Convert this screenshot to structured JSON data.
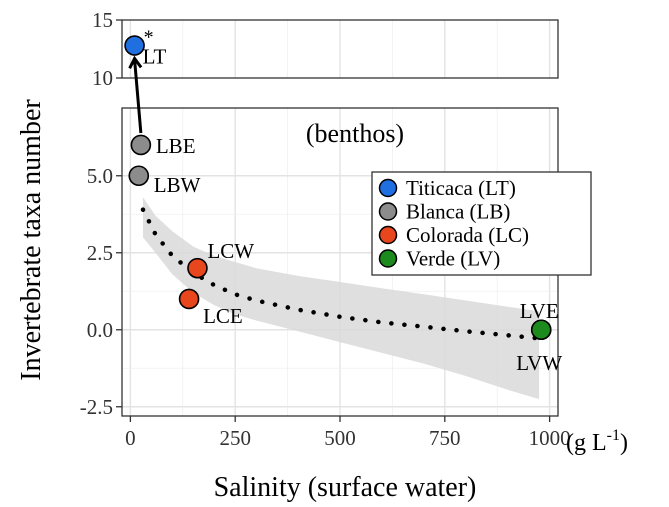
{
  "chart_data": {
    "type": "scatter",
    "xlabel": "Salinity (surface water)",
    "xunit": "(g L",
    "xunit_sup": "-1",
    "xunit_close": ")",
    "ylabel": "Invertebrate taxa number",
    "annotation": "(benthos)",
    "asterisk": "*",
    "x_ticks": [
      "0",
      "250",
      "500",
      "750",
      "1000"
    ],
    "x_tick_values": [
      0,
      250,
      500,
      750,
      1000
    ],
    "y_ticks_main": [
      "-2.5",
      "0.0",
      "2.5",
      "5.0"
    ],
    "y_tick_values_main": [
      -2.5,
      0,
      2.5,
      5.0
    ],
    "y_ticks_top": [
      "10",
      "15"
    ],
    "y_tick_values_top": [
      10,
      15
    ],
    "xlim": [
      -20,
      1020
    ],
    "ylim_main": [
      -2.8,
      7.2
    ],
    "ylim_top": [
      10,
      15
    ],
    "grid": true,
    "legend_position": "right-center",
    "legend": [
      {
        "label": "Titicaca (LT)",
        "color": "#1f6fe0"
      },
      {
        "label": "Blanca (LB)",
        "color": "#8c8c8c"
      },
      {
        "label": "Colorada (LC)",
        "color": "#e8461c"
      },
      {
        "label": "Verde (LV)",
        "color": "#1d8a1d"
      }
    ],
    "points": [
      {
        "label": "LT",
        "x": 10,
        "y": 12.8,
        "color": "#1f6fe0",
        "panel": "top"
      },
      {
        "label": "LBE",
        "x": 25,
        "y": 6,
        "color": "#8c8c8c",
        "panel": "main"
      },
      {
        "label": "LBW",
        "x": 20,
        "y": 5,
        "color": "#8c8c8c",
        "panel": "main"
      },
      {
        "label": "LCW",
        "x": 160,
        "y": 2,
        "color": "#e8461c",
        "panel": "main"
      },
      {
        "label": "LCE",
        "x": 140,
        "y": 1,
        "color": "#e8461c",
        "panel": "main"
      },
      {
        "label": "LVE",
        "x": 980,
        "y": 0,
        "color": "#1d8a1d",
        "panel": "main"
      },
      {
        "label": "LVW",
        "x": 980,
        "y": 0,
        "color": "#1d8a1d",
        "panel": "main"
      }
    ],
    "fit_curve": {
      "x": [
        30,
        60,
        100,
        150,
        200,
        250,
        300,
        400,
        500,
        600,
        700,
        800,
        900,
        975
      ],
      "y": [
        3.9,
        3.1,
        2.4,
        1.85,
        1.45,
        1.15,
        0.95,
        0.65,
        0.42,
        0.24,
        0.1,
        -0.05,
        -0.18,
        -0.28
      ]
    },
    "confidence_band": {
      "x": [
        30,
        60,
        100,
        150,
        200,
        250,
        300,
        400,
        500,
        600,
        700,
        800,
        900,
        975
      ],
      "upper": [
        4.3,
        3.7,
        3.2,
        2.7,
        2.4,
        2.2,
        2.0,
        1.75,
        1.55,
        1.35,
        1.15,
        0.95,
        0.75,
        0.6
      ],
      "lower": [
        3.0,
        2.5,
        1.8,
        1.2,
        0.8,
        0.5,
        0.3,
        -0.05,
        -0.4,
        -0.75,
        -1.1,
        -1.5,
        -1.95,
        -2.25
      ]
    }
  }
}
